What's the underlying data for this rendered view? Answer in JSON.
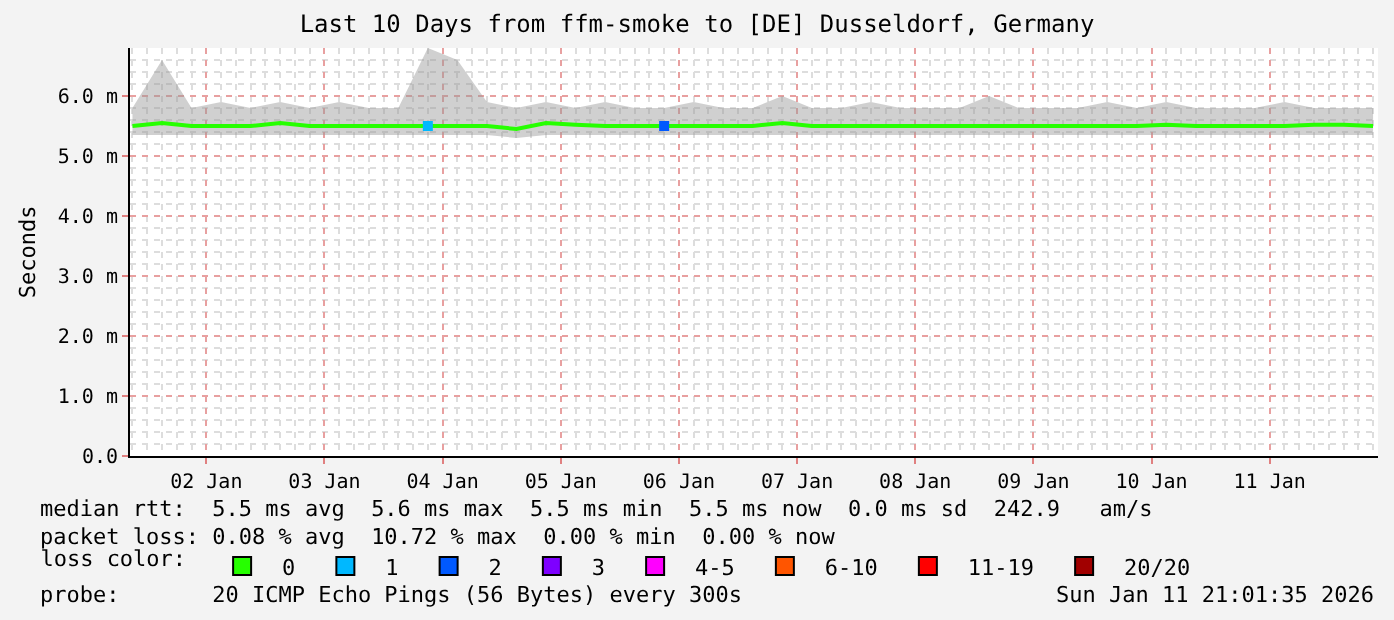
{
  "chart_data": {
    "type": "line",
    "title": "Last 10 Days from ffm-smoke to [DE] Dusseldorf, Germany",
    "ylabel": "Seconds",
    "xlim": [
      "2026-01-01T08:30",
      "2026-01-11T22:00"
    ],
    "xticks": [
      {
        "value": "2026-01-02",
        "label": "02 Jan"
      },
      {
        "value": "2026-01-03",
        "label": "03 Jan"
      },
      {
        "value": "2026-01-04",
        "label": "04 Jan"
      },
      {
        "value": "2026-01-05",
        "label": "05 Jan"
      },
      {
        "value": "2026-01-06",
        "label": "06 Jan"
      },
      {
        "value": "2026-01-07",
        "label": "07 Jan"
      },
      {
        "value": "2026-01-08",
        "label": "08 Jan"
      },
      {
        "value": "2026-01-09",
        "label": "09 Jan"
      },
      {
        "value": "2026-01-10",
        "label": "10 Jan"
      },
      {
        "value": "2026-01-11",
        "label": "11 Jan"
      }
    ],
    "ylim": [
      0,
      6.8
    ],
    "yticks": [
      {
        "value": 0,
        "label": "0.0"
      },
      {
        "value": 1,
        "label": "1.0 m"
      },
      {
        "value": 2,
        "label": "2.0 m"
      },
      {
        "value": 3,
        "label": "3.0 m"
      },
      {
        "value": 4,
        "label": "4.0 m"
      },
      {
        "value": 5,
        "label": "5.0 m"
      },
      {
        "value": 6,
        "label": "6.0 m"
      }
    ],
    "grid": true,
    "legend": "bottom",
    "legend_title": "loss color:",
    "marker": "none",
    "line_style": "solid",
    "series": [
      {
        "name": "0",
        "color": "#26ff00",
        "x": [
          "2026-01-01T09:00",
          "2026-01-01T15:00",
          "2026-01-01T21:00",
          "2026-01-02T03:00",
          "2026-01-02T09:00",
          "2026-01-02T15:00",
          "2026-01-02T21:00",
          "2026-01-03T03:00",
          "2026-01-03T09:00",
          "2026-01-03T15:00",
          "2026-01-03T21:00",
          "2026-01-04T03:00",
          "2026-01-04T09:00",
          "2026-01-04T15:00",
          "2026-01-04T21:00",
          "2026-01-05T03:00",
          "2026-01-05T09:00",
          "2026-01-05T15:00",
          "2026-01-05T21:00",
          "2026-01-06T03:00",
          "2026-01-06T09:00",
          "2026-01-06T15:00",
          "2026-01-06T21:00",
          "2026-01-07T03:00",
          "2026-01-07T09:00",
          "2026-01-07T15:00",
          "2026-01-07T21:00",
          "2026-01-08T03:00",
          "2026-01-08T09:00",
          "2026-01-08T15:00",
          "2026-01-08T21:00",
          "2026-01-09T03:00",
          "2026-01-09T09:00",
          "2026-01-09T15:00",
          "2026-01-09T21:00",
          "2026-01-10T03:00",
          "2026-01-10T09:00",
          "2026-01-10T15:00",
          "2026-01-10T21:00",
          "2026-01-11T03:00",
          "2026-01-11T09:00",
          "2026-01-11T15:00",
          "2026-01-11T21:00"
        ],
        "values": [
          5.5,
          5.55,
          5.5,
          5.5,
          5.5,
          5.55,
          5.5,
          5.5,
          5.5,
          5.5,
          5.5,
          5.5,
          5.5,
          5.45,
          5.55,
          5.52,
          5.5,
          5.5,
          5.5,
          5.5,
          5.5,
          5.5,
          5.55,
          5.5,
          5.5,
          5.5,
          5.5,
          5.5,
          5.5,
          5.5,
          5.5,
          5.5,
          5.5,
          5.5,
          5.5,
          5.52,
          5.5,
          5.5,
          5.5,
          5.5,
          5.52,
          5.52,
          5.5
        ],
        "lower": [
          5.35,
          5.35,
          5.35,
          5.35,
          5.35,
          5.35,
          5.35,
          5.35,
          5.35,
          5.35,
          5.35,
          5.35,
          5.35,
          5.3,
          5.35,
          5.35,
          5.35,
          5.35,
          5.35,
          5.35,
          5.35,
          5.35,
          5.35,
          5.35,
          5.35,
          5.35,
          5.35,
          5.35,
          5.35,
          5.35,
          5.35,
          5.35,
          5.35,
          5.35,
          5.35,
          5.35,
          5.35,
          5.35,
          5.35,
          5.35,
          5.35,
          5.35,
          5.35
        ],
        "upper": [
          5.8,
          6.6,
          5.8,
          5.9,
          5.8,
          5.9,
          5.8,
          5.9,
          5.8,
          5.8,
          6.8,
          6.6,
          5.9,
          5.8,
          5.9,
          5.8,
          5.9,
          5.8,
          5.8,
          5.9,
          5.8,
          5.8,
          6.0,
          5.8,
          5.8,
          5.9,
          5.8,
          5.8,
          5.8,
          6.0,
          5.8,
          5.8,
          5.8,
          5.9,
          5.8,
          5.9,
          5.8,
          5.8,
          5.8,
          5.9,
          5.8,
          5.8,
          5.8
        ]
      },
      {
        "name": "1",
        "color": "#00b8ff",
        "marker": "square",
        "x": [
          "2026-01-03T21:00"
        ],
        "values": [
          5.5
        ]
      },
      {
        "name": "2",
        "color": "#0059ff",
        "marker": "square",
        "x": [
          "2026-01-05T21:00"
        ],
        "values": [
          5.5
        ]
      },
      {
        "name": "3",
        "color": "#7e00ff"
      },
      {
        "name": "4-5",
        "color": "#ff00ff"
      },
      {
        "name": "6-10",
        "color": "#ff5500"
      },
      {
        "name": "11-19",
        "color": "#ff0000"
      },
      {
        "name": "20/20",
        "color": "#a10000"
      }
    ],
    "annotations": [
      "median rtt:  5.5 ms avg  5.6 ms max  5.5 ms min  5.5 ms now  0.0 ms sd  242.9   am/s",
      "packet loss: 0.08 % avg  10.72 % max  0.00 % min  0.00 % now",
      "probe:       20 ICMP Echo Pings (56 Bytes) every 300s",
      "Sun Jan 11 21:01:35 2026"
    ]
  }
}
